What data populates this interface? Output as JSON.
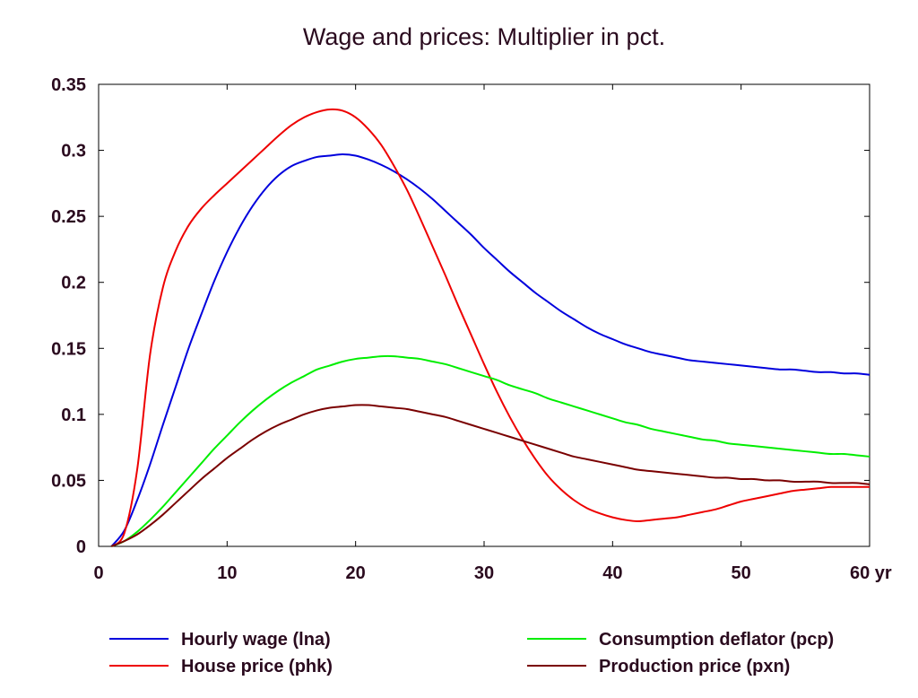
{
  "chart_data": {
    "type": "line",
    "title": "Wage and prices: Multiplier in pct.",
    "xlabel": "",
    "ylabel": "",
    "x_unit": "yr",
    "xlim": [
      0,
      60
    ],
    "ylim": [
      0,
      0.35
    ],
    "xticks": [
      0,
      10,
      20,
      30,
      40,
      50,
      60
    ],
    "xtick_labels": [
      "0",
      "10",
      "20",
      "30",
      "40",
      "50",
      "60 yr"
    ],
    "yticks": [
      0,
      0.05,
      0.1,
      0.15,
      0.2,
      0.25,
      0.3,
      0.35
    ],
    "ytick_labels": [
      "0",
      "0.05",
      "0.1",
      "0.15",
      "0.2",
      "0.25",
      "0.3",
      "0.35"
    ],
    "grid": false,
    "legend_position": "bottom",
    "x": [
      1,
      2,
      3,
      4,
      5,
      6,
      7,
      8,
      9,
      10,
      11,
      12,
      13,
      14,
      15,
      16,
      17,
      18,
      19,
      20,
      21,
      22,
      23,
      24,
      25,
      26,
      27,
      28,
      29,
      30,
      31,
      32,
      33,
      34,
      35,
      36,
      37,
      38,
      39,
      40,
      41,
      42,
      43,
      44,
      45,
      46,
      47,
      48,
      49,
      50,
      51,
      52,
      53,
      54,
      55,
      56,
      57,
      58,
      59,
      60
    ],
    "series": [
      {
        "name": "Hourly wage (lna)",
        "color": "#0000dd",
        "values": [
          0.0,
          0.012,
          0.035,
          0.062,
          0.092,
          0.121,
          0.15,
          0.176,
          0.201,
          0.223,
          0.242,
          0.258,
          0.271,
          0.281,
          0.288,
          0.292,
          0.295,
          0.296,
          0.297,
          0.296,
          0.293,
          0.289,
          0.284,
          0.278,
          0.271,
          0.263,
          0.254,
          0.245,
          0.236,
          0.226,
          0.217,
          0.208,
          0.2,
          0.192,
          0.185,
          0.178,
          0.172,
          0.166,
          0.161,
          0.157,
          0.153,
          0.15,
          0.147,
          0.145,
          0.143,
          0.141,
          0.14,
          0.139,
          0.138,
          0.137,
          0.136,
          0.135,
          0.134,
          0.134,
          0.133,
          0.132,
          0.132,
          0.131,
          0.131,
          0.13
        ]
      },
      {
        "name": "House price (phk)",
        "color": "#ee0000",
        "values": [
          0.0,
          0.01,
          0.058,
          0.145,
          0.196,
          0.224,
          0.243,
          0.256,
          0.266,
          0.275,
          0.284,
          0.293,
          0.302,
          0.311,
          0.319,
          0.325,
          0.329,
          0.331,
          0.33,
          0.325,
          0.316,
          0.304,
          0.288,
          0.27,
          0.249,
          0.227,
          0.205,
          0.182,
          0.16,
          0.138,
          0.117,
          0.098,
          0.081,
          0.066,
          0.053,
          0.043,
          0.035,
          0.029,
          0.025,
          0.022,
          0.02,
          0.019,
          0.02,
          0.021,
          0.022,
          0.024,
          0.026,
          0.028,
          0.031,
          0.034,
          0.036,
          0.038,
          0.04,
          0.042,
          0.043,
          0.044,
          0.045,
          0.045,
          0.045,
          0.045
        ]
      },
      {
        "name": "Consumption deflator (pcp)",
        "color": "#00ee00",
        "values": [
          0.0,
          0.004,
          0.011,
          0.02,
          0.03,
          0.041,
          0.052,
          0.063,
          0.074,
          0.084,
          0.094,
          0.103,
          0.111,
          0.118,
          0.124,
          0.129,
          0.134,
          0.137,
          0.14,
          0.142,
          0.143,
          0.144,
          0.144,
          0.143,
          0.142,
          0.14,
          0.138,
          0.135,
          0.132,
          0.129,
          0.126,
          0.122,
          0.119,
          0.116,
          0.112,
          0.109,
          0.106,
          0.103,
          0.1,
          0.097,
          0.094,
          0.092,
          0.089,
          0.087,
          0.085,
          0.083,
          0.081,
          0.08,
          0.078,
          0.077,
          0.076,
          0.075,
          0.074,
          0.073,
          0.072,
          0.071,
          0.07,
          0.07,
          0.069,
          0.068
        ]
      },
      {
        "name": "Production price (pxn)",
        "color": "#7a0000",
        "values": [
          0.0,
          0.004,
          0.009,
          0.016,
          0.024,
          0.033,
          0.042,
          0.051,
          0.059,
          0.067,
          0.074,
          0.081,
          0.087,
          0.092,
          0.096,
          0.1,
          0.103,
          0.105,
          0.106,
          0.107,
          0.107,
          0.106,
          0.105,
          0.104,
          0.102,
          0.1,
          0.098,
          0.095,
          0.092,
          0.089,
          0.086,
          0.083,
          0.08,
          0.077,
          0.074,
          0.071,
          0.068,
          0.066,
          0.064,
          0.062,
          0.06,
          0.058,
          0.057,
          0.056,
          0.055,
          0.054,
          0.053,
          0.052,
          0.052,
          0.051,
          0.051,
          0.05,
          0.05,
          0.049,
          0.049,
          0.049,
          0.048,
          0.048,
          0.048,
          0.047
        ]
      }
    ]
  }
}
